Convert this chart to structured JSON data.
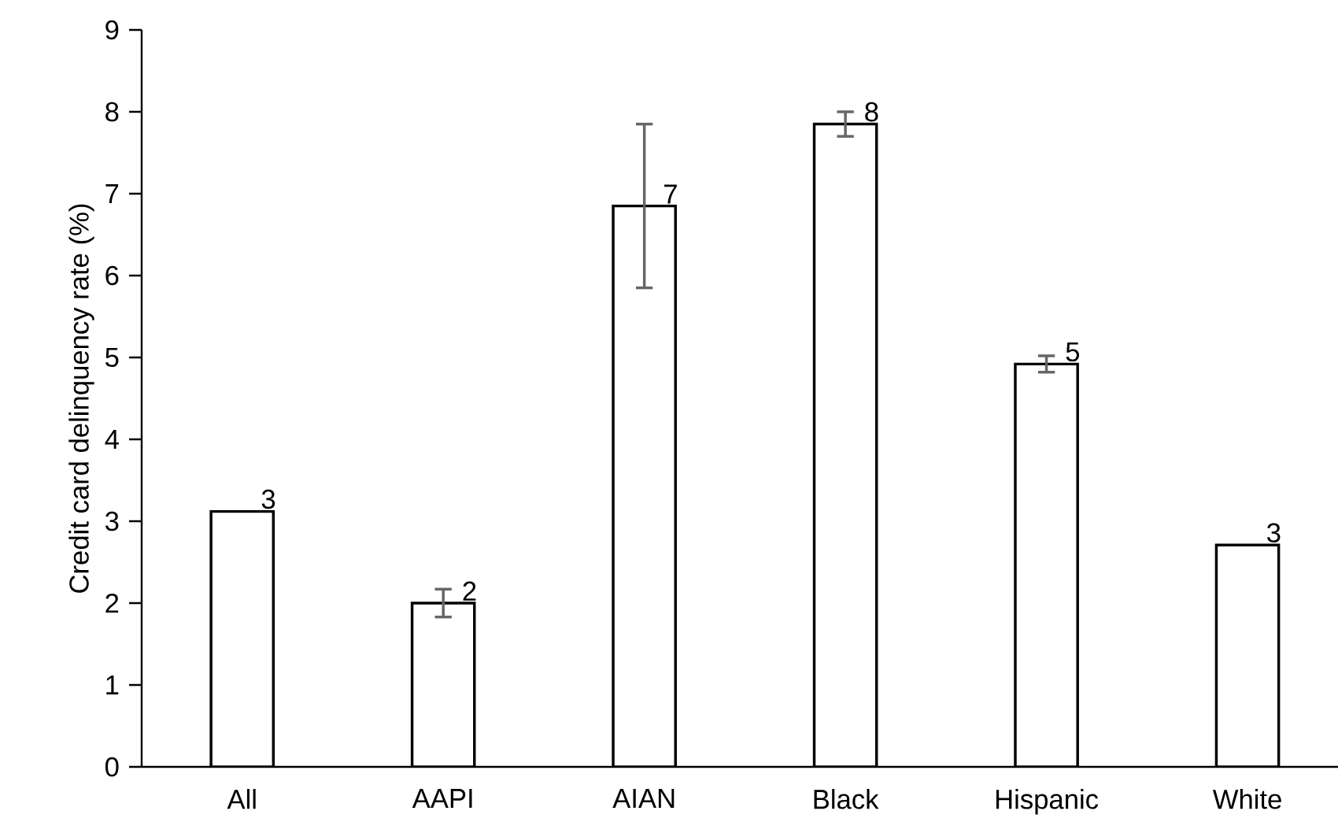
{
  "chart_data": {
    "type": "bar",
    "ylabel": "Credit card delinquency rate (%)",
    "categories": [
      "All",
      "AAPI",
      "AIAN",
      "Black",
      "Hispanic",
      "White"
    ],
    "values": [
      3.12,
      2.0,
      6.85,
      7.85,
      4.92,
      2.71
    ],
    "errors": [
      null,
      0.17,
      1.0,
      0.15,
      0.1,
      null
    ],
    "value_labels": [
      "3",
      "2",
      "7",
      "8",
      "5",
      "3"
    ],
    "color": "#ffffff",
    "ylim": [
      0,
      9
    ],
    "yticks": [
      0,
      1,
      2,
      3,
      4,
      5,
      6,
      7,
      8,
      9
    ],
    "grid": false
  }
}
